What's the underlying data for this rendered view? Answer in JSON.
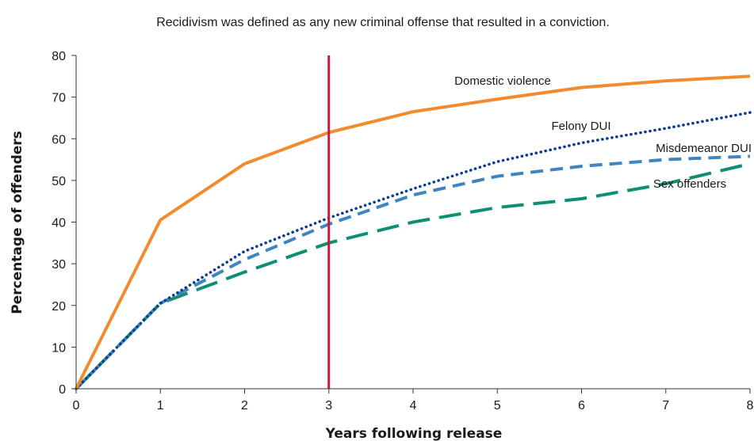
{
  "chart_data": {
    "type": "line",
    "note": "Recidivism was defined as any new criminal offense that resulted in a conviction.",
    "xlabel": "Years following release",
    "ylabel": "Percentage of offenders",
    "xlim": [
      0,
      8
    ],
    "ylim": [
      0,
      80
    ],
    "x_ticks": [
      0,
      1,
      2,
      3,
      4,
      5,
      6,
      7,
      8
    ],
    "y_ticks": [
      0,
      10,
      20,
      30,
      40,
      50,
      60,
      70,
      80
    ],
    "grid": false,
    "x": [
      0,
      1,
      2,
      3,
      4,
      5,
      6,
      7,
      8
    ],
    "series": [
      {
        "name": "Domestic violence",
        "values": [
          0,
          40.5,
          54,
          61.5,
          66.5,
          69.5,
          72.3,
          73.9,
          75
        ],
        "color": "#f28a2e",
        "style": "solid"
      },
      {
        "name": "Felony DUI",
        "values": [
          0,
          20.5,
          33,
          41,
          48,
          54.5,
          59,
          62.5,
          66.3
        ],
        "color": "#0b3f8a",
        "style": "dotted"
      },
      {
        "name": "Misdemeanor DUI",
        "values": [
          0,
          20.5,
          31,
          39.5,
          46.5,
          51,
          53.4,
          55,
          55.8
        ],
        "color": "#3f86c0",
        "style": "dashed"
      },
      {
        "name": "Sex offenders",
        "values": [
          0,
          20.5,
          28,
          35,
          40,
          43.5,
          45.6,
          49.2,
          54
        ],
        "color": "#0d8f73",
        "style": "longdash"
      }
    ],
    "reference_line": {
      "x": 3,
      "color": "#c8173a"
    }
  }
}
